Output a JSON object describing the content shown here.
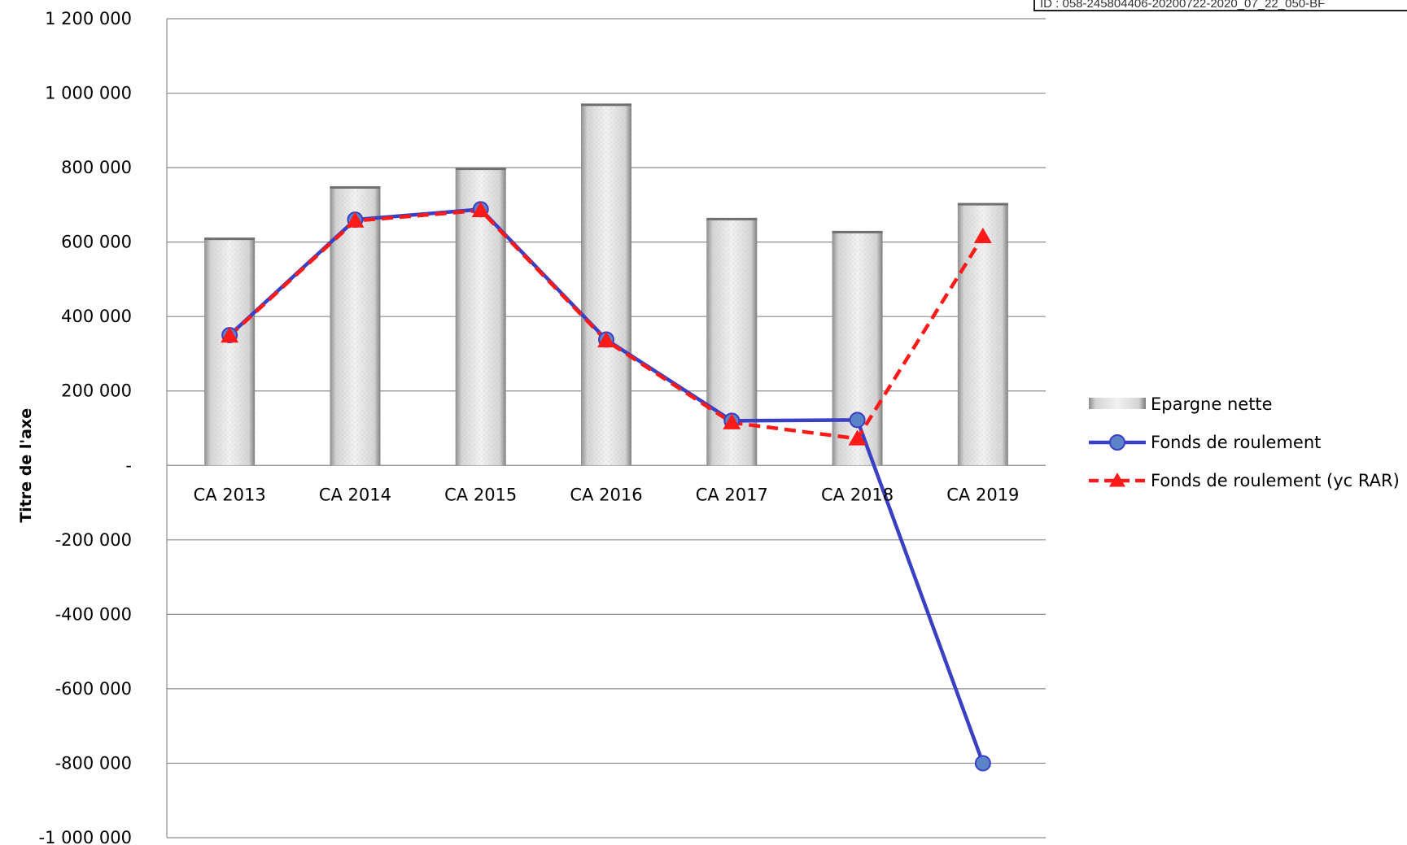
{
  "stamp": {
    "text": "ID : 058-245804406-20200722-2020_07_22_050-BF"
  },
  "chart_data": {
    "type": "bar",
    "categories": [
      "CA 2013",
      "CA 2014",
      "CA 2015",
      "CA 2016",
      "CA 2017",
      "CA 2018",
      "CA 2019"
    ],
    "ylabel": "Titre de l'axe",
    "xlabel": "",
    "ylim": [
      -1000000,
      1200000
    ],
    "yticks": [
      1200000,
      1000000,
      800000,
      600000,
      400000,
      200000,
      0,
      -200000,
      -400000,
      -600000,
      -800000,
      -1000000
    ],
    "ytick_labels": [
      "1 200 000",
      "1 000 000",
      "800 000",
      "600 000",
      "400 000",
      "200 000",
      "-",
      "-200 000",
      "-400 000",
      "-600 000",
      "-800 000",
      "-1 000 000"
    ],
    "grid": true,
    "legend_position": "right",
    "series": [
      {
        "name": "Epargne nette",
        "kind": "bar",
        "color": "#d9d9d9",
        "values": [
          612000,
          750000,
          800000,
          972000,
          665000,
          630000,
          705000
        ]
      },
      {
        "name": "Fonds de roulement",
        "kind": "line",
        "marker": "circle",
        "color": "#3a3fc4",
        "marker_color": "#5b84c8",
        "values": [
          350000,
          660000,
          688000,
          338000,
          120000,
          122000,
          -800000
        ]
      },
      {
        "name": "Fonds de roulement (yc RAR)",
        "kind": "line",
        "marker": "triangle",
        "dashed": true,
        "color": "#ff1a1a",
        "values": [
          348000,
          657000,
          685000,
          335000,
          115000,
          72000,
          615000
        ]
      }
    ]
  }
}
